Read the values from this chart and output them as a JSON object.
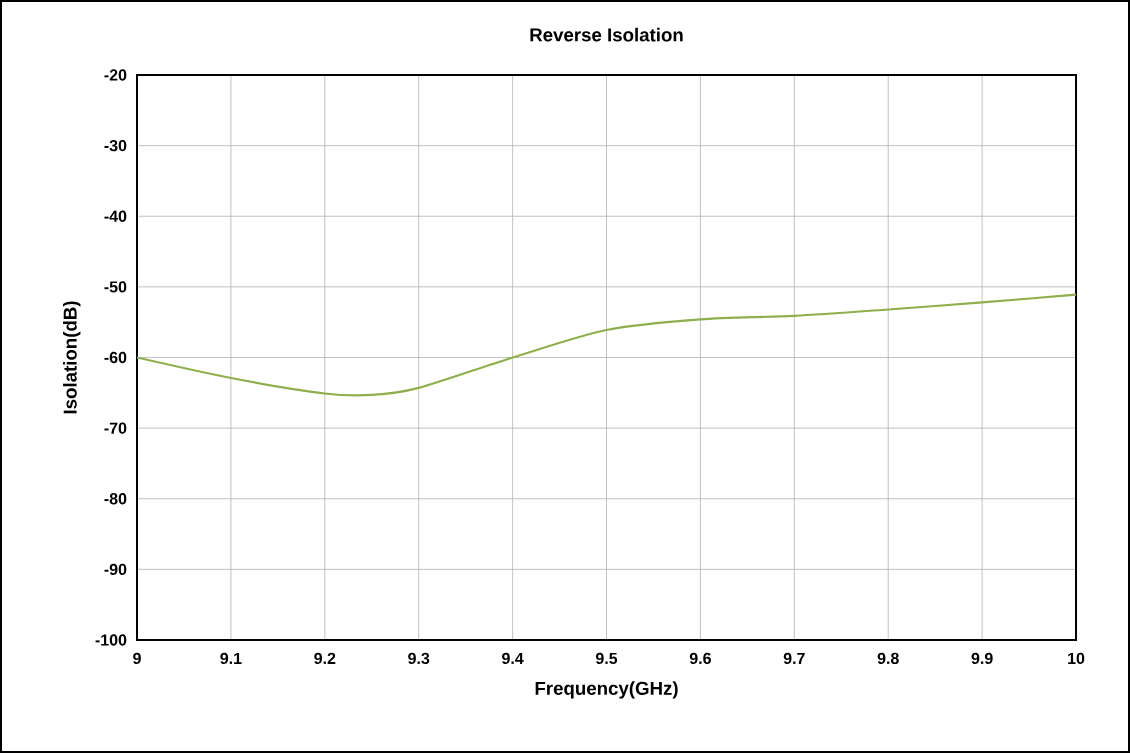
{
  "chart_data": {
    "type": "line",
    "title": "Reverse Isolation",
    "xlabel": "Frequency(GHz)",
    "ylabel": "Isolation(dB)",
    "x": [
      9,
      9.1,
      9.2,
      9.25,
      9.3,
      9.4,
      9.5,
      9.6,
      9.7,
      9.8,
      9.9,
      10
    ],
    "series": [
      {
        "color": "#8db04a",
        "values": [
          -60,
          -62.9,
          -65.1,
          -65.3,
          -64.3,
          -60,
          -56.1,
          -54.6,
          -54.1,
          -53.2,
          -52.2,
          -51.1
        ]
      }
    ],
    "xlim": [
      9,
      10
    ],
    "xticks": [
      9,
      9.1,
      9.2,
      9.3,
      9.4,
      9.5,
      9.6,
      9.7,
      9.8,
      9.9,
      10
    ],
    "ylim": [
      -100,
      -20
    ],
    "yticks": [
      -100,
      -90,
      -80,
      -70,
      -60,
      -50,
      -40,
      -30,
      -20
    ],
    "grid": true,
    "marker": "none",
    "line_style": "solid"
  }
}
